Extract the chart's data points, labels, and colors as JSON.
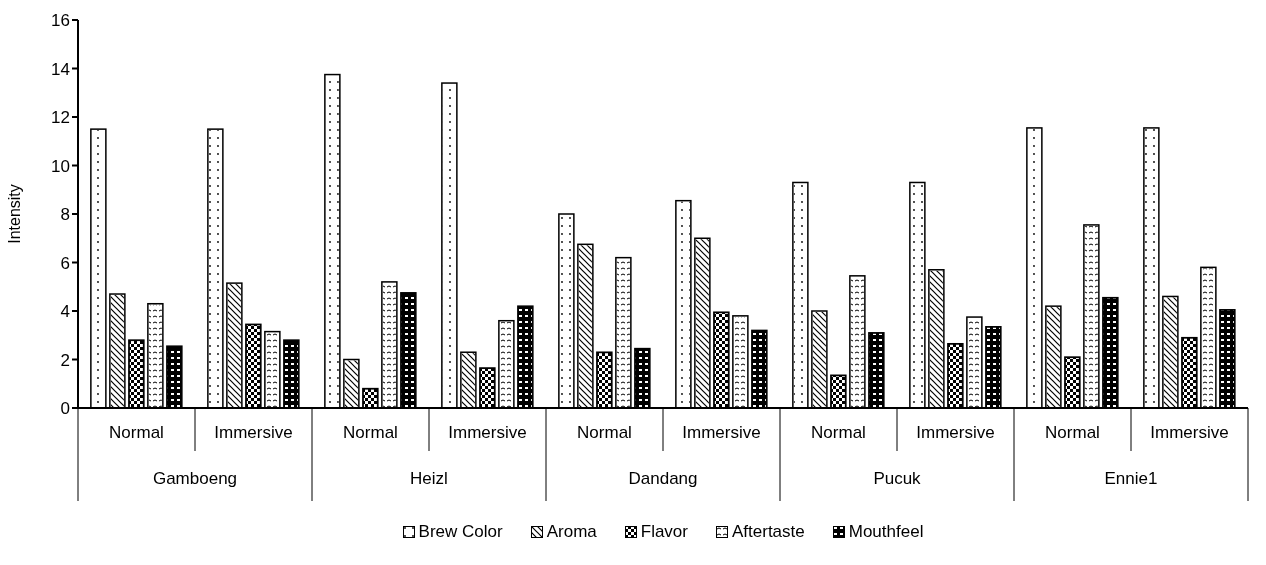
{
  "chart_data": {
    "type": "bar",
    "ylabel": "Intensity",
    "categories": [
      "Normal",
      "Immersive",
      "Normal",
      "Immersive",
      "Normal",
      "Immersive",
      "Normal",
      "Immersive",
      "Normal",
      "Immersive"
    ],
    "annotations": [
      "Gamboeng",
      "Heizl",
      "Dandang",
      "Pucuk",
      "Ennie1"
    ],
    "series": [
      {
        "name": "Brew Color",
        "color": "#ffffff",
        "values": [
          11.5,
          11.5,
          13.75,
          13.4,
          8.0,
          8.55,
          9.3,
          9.3,
          11.55,
          11.55
        ]
      },
      {
        "name": "Aroma",
        "color": "#ffffff",
        "values": [
          4.7,
          5.15,
          2.0,
          2.3,
          6.75,
          7.0,
          4.0,
          5.7,
          4.2,
          4.6
        ]
      },
      {
        "name": "Flavor",
        "color": "#000000",
        "values": [
          2.8,
          3.45,
          0.8,
          1.65,
          2.3,
          3.95,
          1.35,
          2.65,
          2.1,
          2.9
        ]
      },
      {
        "name": "Aftertaste",
        "color": "#ffffff",
        "values": [
          4.3,
          3.15,
          5.2,
          3.6,
          6.2,
          3.8,
          5.45,
          3.75,
          7.55,
          5.8
        ]
      },
      {
        "name": "Mouthfeel",
        "color": "#000000",
        "values": [
          2.55,
          2.8,
          4.75,
          4.2,
          2.45,
          3.2,
          3.1,
          3.35,
          4.55,
          4.05
        ]
      }
    ],
    "ylim": [
      0,
      16
    ],
    "yticks": [
      0,
      2,
      4,
      6,
      8,
      10,
      12,
      14,
      16
    ],
    "grid": false,
    "legend": "bottom"
  }
}
